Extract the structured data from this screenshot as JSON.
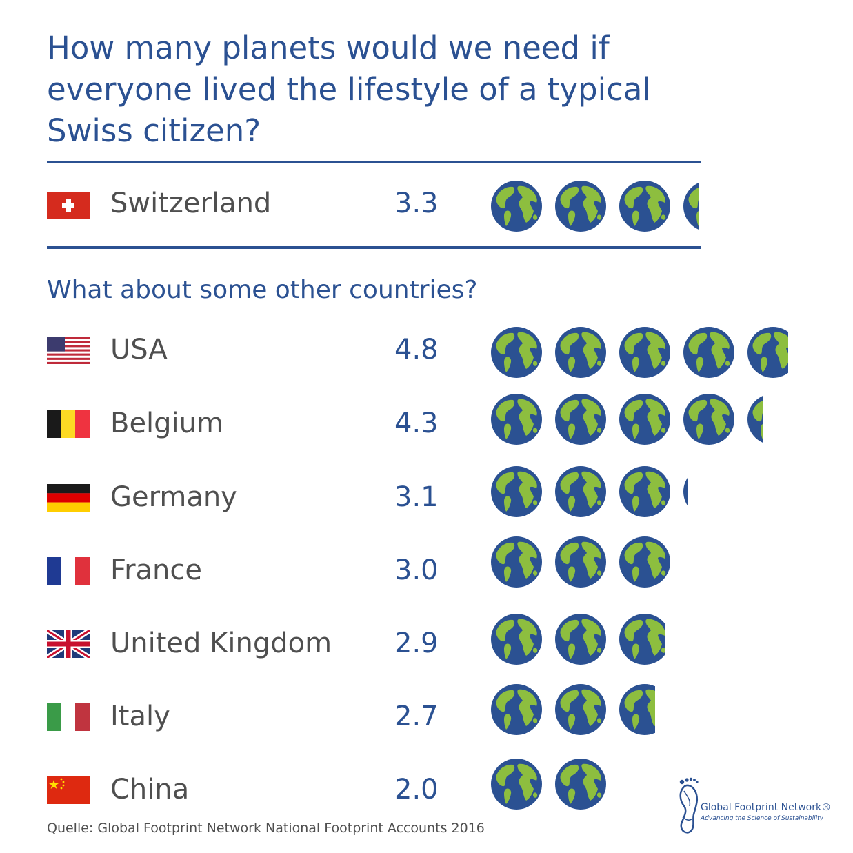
{
  "title": "How many planets would we need if everyone lived the lifestyle of a typical Swiss citizen?",
  "subtitle": "What about some other countries?",
  "source": "Quelle: Global Footprint Network National Footprint Accounts 2016",
  "logo": {
    "name": "Global Footprint Network®",
    "tagline": "Advancing the Science of Sustainability"
  },
  "colors": {
    "accent": "#2b5192",
    "text": "#4f4f4f",
    "globe_ocean": "#2b5192",
    "globe_land": "#8dbe3f"
  },
  "chart_data": {
    "type": "bar",
    "unit_icon": "globe-icon",
    "title": "How many planets would we need if everyone lived the lifestyle of a typical Swiss citizen?",
    "subtitle": "What about some other countries?",
    "highlight": {
      "country": "Switzerland",
      "flag": "switzerland-flag",
      "value_label": "3.3",
      "value": 3.3
    },
    "rows": [
      {
        "country": "USA",
        "flag": "usa-flag",
        "value_label": "4.8",
        "value": 4.8
      },
      {
        "country": "Belgium",
        "flag": "belgium-flag",
        "value_label": "4.3",
        "value": 4.3
      },
      {
        "country": "Germany",
        "flag": "germany-flag",
        "value_label": "3.1",
        "value": 3.1
      },
      {
        "country": "France",
        "flag": "france-flag",
        "value_label": "3.0",
        "value": 3.0
      },
      {
        "country": "United Kingdom",
        "flag": "uk-flag",
        "value_label": "2.9",
        "value": 2.9
      },
      {
        "country": "Italy",
        "flag": "italy-flag",
        "value_label": "2.7",
        "value": 2.7
      },
      {
        "country": "China",
        "flag": "china-flag",
        "value_label": "2.0",
        "value": 2.0
      }
    ]
  }
}
